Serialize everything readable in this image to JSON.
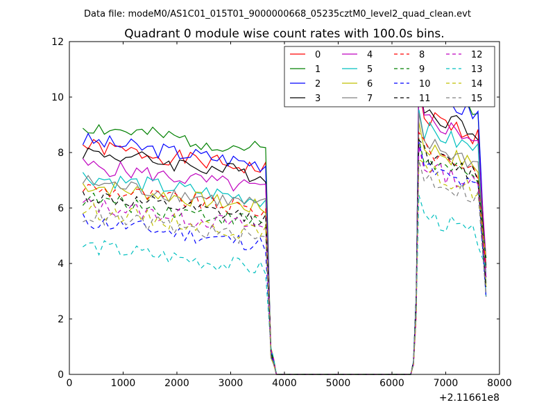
{
  "chart_data": {
    "type": "line",
    "suptitle": "Data file: modeM0/AS1C01_015T01_9000000668_05235cztM0_level2_quad_clean.evt",
    "title": "Quadrant 0 module wise count rates with 100.0s bins.",
    "xlabel": "",
    "ylabel": "",
    "x_offset_label": "+2.11661e8",
    "xlim": [
      0,
      8000
    ],
    "ylim": [
      0,
      12
    ],
    "xticks": [
      0,
      1000,
      2000,
      3000,
      4000,
      5000,
      6000,
      7000,
      8000
    ],
    "yticks": [
      0,
      2,
      4,
      6,
      8,
      10,
      12
    ],
    "grid": false,
    "legend_placement": "top-right",
    "legend_columns": 4,
    "segments": {
      "first_window": {
        "start": 250,
        "step": 100,
        "count": 35
      },
      "ramp_down": [
        [
          3750,
          1.0
        ],
        [
          3800,
          0.6
        ],
        [
          3850,
          0.0
        ]
      ],
      "gap": [
        3900,
        6300
      ],
      "ramp_up": [
        [
          6350,
          0.0
        ],
        [
          6400,
          0.5
        ],
        [
          6450,
          3.0
        ]
      ],
      "second_window": {
        "start": 6500,
        "step": 100,
        "count": 12
      },
      "tail": [
        7750,
        2.8
      ]
    },
    "series": [
      {
        "name": "0",
        "color": "#ff0000",
        "style": "solid",
        "level1": 7.9,
        "level2": 8.8
      },
      {
        "name": "1",
        "color": "#008000",
        "style": "solid",
        "level1": 8.6,
        "level2": 9.8
      },
      {
        "name": "2",
        "color": "#0000ff",
        "style": "solid",
        "level1": 8.1,
        "level2": 9.6
      },
      {
        "name": "3",
        "color": "#000000",
        "style": "solid",
        "level1": 7.7,
        "level2": 9.0
      },
      {
        "name": "4",
        "color": "#bf00bf",
        "style": "solid",
        "level1": 7.2,
        "level2": 8.7
      },
      {
        "name": "5",
        "color": "#00bfbf",
        "style": "solid",
        "level1": 6.8,
        "level2": 8.3
      },
      {
        "name": "6",
        "color": "#bfbf00",
        "style": "solid",
        "level1": 6.5,
        "level2": 7.7
      },
      {
        "name": "7",
        "color": "#808080",
        "style": "solid",
        "level1": 6.6,
        "level2": 7.8
      },
      {
        "name": "8",
        "color": "#ff0000",
        "style": "dashed",
        "level1": 6.4,
        "level2": 7.6
      },
      {
        "name": "9",
        "color": "#008000",
        "style": "dashed",
        "level1": 6.0,
        "level2": 7.2
      },
      {
        "name": "10",
        "color": "#0000ff",
        "style": "dashed",
        "level1": 5.2,
        "level2": 6.9
      },
      {
        "name": "11",
        "color": "#000000",
        "style": "dashed",
        "level1": 6.1,
        "level2": 7.4
      },
      {
        "name": "12",
        "color": "#bf00bf",
        "style": "dashed",
        "level1": 5.8,
        "level2": 7.0
      },
      {
        "name": "13",
        "color": "#00bfbf",
        "style": "dashed",
        "level1": 4.3,
        "level2": 5.2
      },
      {
        "name": "14",
        "color": "#bfbf00",
        "style": "dashed",
        "level1": 5.6,
        "level2": 6.8
      },
      {
        "name": "15",
        "color": "#808080",
        "style": "dashed",
        "level1": 5.4,
        "level2": 6.6
      }
    ]
  }
}
